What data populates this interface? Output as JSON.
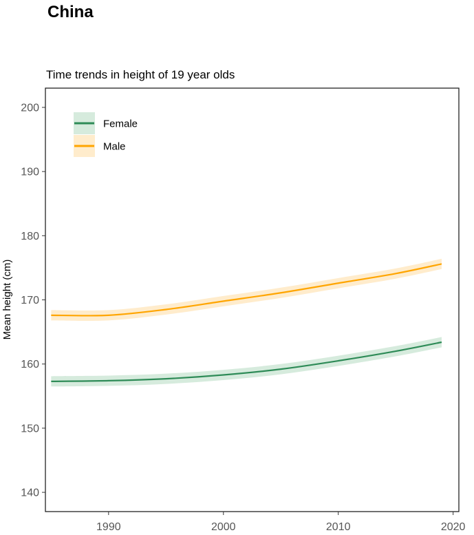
{
  "page": {
    "title": "China"
  },
  "chart_data": {
    "type": "line",
    "title": "Time trends in height of 19 year olds",
    "xlabel": "",
    "ylabel": "Mean height (cm)",
    "xlim": [
      1984.5,
      2020.5
    ],
    "ylim": [
      137,
      203
    ],
    "x_ticks": [
      1990,
      2000,
      2010,
      2020
    ],
    "y_ticks": [
      140,
      150,
      160,
      170,
      180,
      190,
      200
    ],
    "grid": false,
    "legend_position": "top-left",
    "x": [
      1985,
      1990,
      1995,
      2000,
      2005,
      2010,
      2015,
      2019
    ],
    "series": [
      {
        "name": "Female",
        "color": "#2e8b57",
        "band_color": "#d6ebdd",
        "values": [
          157.3,
          157.4,
          157.7,
          158.3,
          159.2,
          160.5,
          162.0,
          163.4
        ],
        "ci_halfwidth": 0.8
      },
      {
        "name": "Male",
        "color": "#ffa500",
        "band_color": "#ffeccc",
        "values": [
          167.6,
          167.6,
          168.5,
          169.8,
          171.1,
          172.6,
          174.1,
          175.6
        ],
        "ci_halfwidth": 0.8
      }
    ]
  }
}
